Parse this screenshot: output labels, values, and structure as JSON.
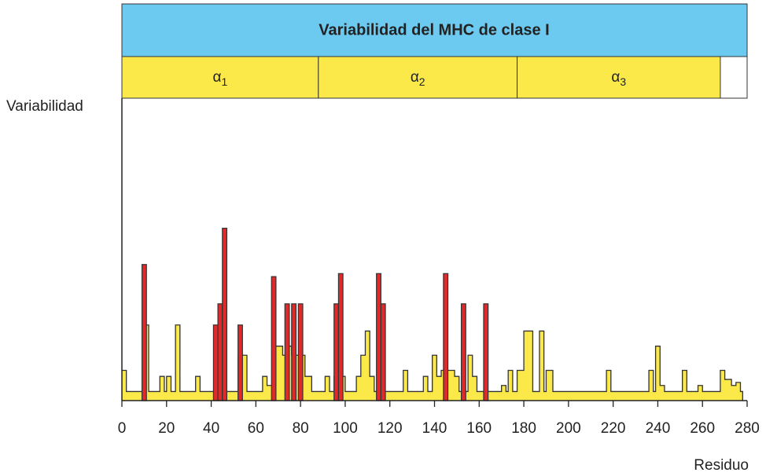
{
  "chart_data": {
    "type": "step",
    "title": "Variabilidad del MHC de clase I",
    "ylabel": "Variabilidad",
    "xlabel": "Residuo",
    "domains": [
      {
        "label": "α",
        "sub": "1",
        "start": 0,
        "end": 88
      },
      {
        "label": "α",
        "sub": "2",
        "start": 88,
        "end": 177
      },
      {
        "label": "α",
        "sub": "3",
        "start": 177,
        "end": 268
      }
    ],
    "xlim": [
      0,
      280
    ],
    "ylim": [
      0,
      100
    ],
    "xticks": [
      0,
      20,
      40,
      60,
      80,
      100,
      120,
      140,
      160,
      180,
      200,
      220,
      240,
      260,
      280
    ],
    "series": [
      {
        "color": "#fbe94a",
        "x": [
          0,
          2,
          10,
          12,
          17,
          19,
          20,
          22,
          24,
          26,
          33,
          35,
          52,
          56,
          63,
          65,
          68,
          72,
          74,
          76,
          82,
          85,
          91,
          93,
          95,
          100,
          105,
          107,
          109,
          111,
          113,
          126,
          128,
          135,
          137,
          139,
          141,
          143,
          149,
          151,
          155,
          157,
          159,
          170,
          172,
          173,
          175,
          177,
          180,
          184,
          187,
          189,
          190,
          193,
          217,
          219,
          236,
          238,
          239,
          241,
          243,
          251,
          253,
          258,
          260,
          268,
          270,
          273,
          275,
          277,
          278
        ],
        "values": [
          10,
          3,
          25,
          3,
          8,
          3,
          8,
          3,
          25,
          3,
          8,
          3,
          15,
          3,
          8,
          5,
          18,
          15,
          18,
          15,
          8,
          3,
          8,
          3,
          8,
          3,
          8,
          15,
          23,
          8,
          3,
          10,
          3,
          8,
          3,
          15,
          8,
          10,
          8,
          3,
          15,
          8,
          3,
          5,
          3,
          10,
          3,
          10,
          23,
          3,
          23,
          3,
          10,
          3,
          10,
          3,
          10,
          3,
          18,
          5,
          3,
          10,
          3,
          5,
          3,
          10,
          7,
          5,
          6,
          3,
          0
        ]
      },
      {
        "color": "#e02a2a",
        "x": [
          9,
          41,
          43,
          45,
          52,
          67,
          73,
          76,
          79,
          95,
          97,
          114,
          116,
          144,
          152,
          162
        ],
        "values": [
          45,
          25,
          32,
          57,
          25,
          41,
          32,
          32,
          32,
          32,
          42,
          42,
          32,
          42,
          32,
          32
        ]
      }
    ]
  }
}
